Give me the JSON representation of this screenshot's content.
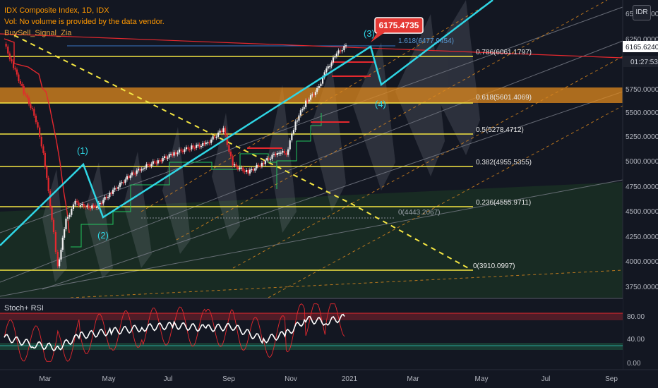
{
  "header": {
    "symbol_line": "IDX Composite Index, 1D, IDX",
    "vol_note": "Vol: No volume is provided by the data vendor.",
    "indicator_name": "BuySell_Signal_Zia"
  },
  "currency_badge": "IDR",
  "price_axis": {
    "ticks": [
      "6500.0000",
      "6250.0000",
      "5750.0000",
      "5500.0000",
      "5250.0000",
      "5000.0000",
      "4750.0000",
      "4500.0000",
      "4250.0000",
      "4000.0000",
      "3750.0000"
    ],
    "last_price": "6165.6240",
    "countdown": "01:27:53"
  },
  "time_axis": {
    "ticks": [
      "Mar",
      "May",
      "Jul",
      "Sep",
      "Nov",
      "2021",
      "Mar",
      "May",
      "Jul",
      "Sep"
    ]
  },
  "indicator_panel": {
    "label": "Stoch+ RSI",
    "ticks": [
      "80.00",
      "40.00",
      "0.00"
    ]
  },
  "annotations": {
    "price_callout": "6175.4735",
    "waves": [
      "(1)",
      "(2)",
      "(3)",
      "(4)"
    ],
    "wave_target": "(1)",
    "fib_levels": [
      "1.618(6477.9454)",
      "0.786(6061.1797)",
      "0.618(5601.4069)",
      "0.5(5278.4712)",
      "0.382(4955.5355)",
      "0.236(4555.9711)",
      "0(4443.2067)",
      "0(3910.0997)"
    ]
  },
  "colors": {
    "background": "#131722",
    "fib_line": "#f5e642",
    "cyan_wave": "#2fd6e5",
    "orange_zone": "#e08a1e",
    "red_line": "#e5282e",
    "green_zone": "#1e3a2a",
    "callout_bg": "#e53935"
  },
  "chart_data": [
    {
      "type": "line",
      "title": "IDX Composite Index, 1D, IDX",
      "ylim": [
        3650,
        6560
      ],
      "x": [
        "2020-02-01",
        "2020-02-10",
        "2020-02-20",
        "2020-03-01",
        "2020-03-10",
        "2020-03-20",
        "2020-03-24",
        "2020-04-01",
        "2020-04-10",
        "2020-04-20",
        "2020-05-01",
        "2020-05-15",
        "2020-06-01",
        "2020-06-15",
        "2020-07-01",
        "2020-07-15",
        "2020-08-01",
        "2020-08-15",
        "2020-09-01",
        "2020-09-10",
        "2020-09-25",
        "2020-10-10",
        "2020-10-25",
        "2020-11-01",
        "2020-11-10",
        "2020-11-20",
        "2020-12-01",
        "2020-12-10",
        "2020-12-20",
        "2020-12-29"
      ],
      "series": [
        {
          "values": [
            6180,
            5950,
            5700,
            5480,
            5100,
            4300,
            3950,
            4420,
            4600,
            4550,
            4560,
            4700,
            4860,
            4950,
            5020,
            5090,
            5150,
            5180,
            5330,
            4970,
            4900,
            5000,
            5110,
            5080,
            5400,
            5600,
            5720,
            5920,
            6080,
            6165
          ]
        }
      ]
    },
    {
      "type": "line",
      "title": "Stoch+ RSI",
      "ylim": [
        0,
        100
      ],
      "x": [
        "2020-02-01",
        "2020-03-01",
        "2020-03-24",
        "2020-04-15",
        "2020-05-15",
        "2020-06-15",
        "2020-07-15",
        "2020-08-15",
        "2020-09-10",
        "2020-10-10",
        "2020-11-01",
        "2020-11-20",
        "2020-12-10",
        "2020-12-29"
      ],
      "series": [
        {
          "values": [
            42,
            30,
            25,
            45,
            52,
            58,
            62,
            57,
            60,
            38,
            48,
            72,
            68,
            76
          ]
        }
      ]
    }
  ]
}
